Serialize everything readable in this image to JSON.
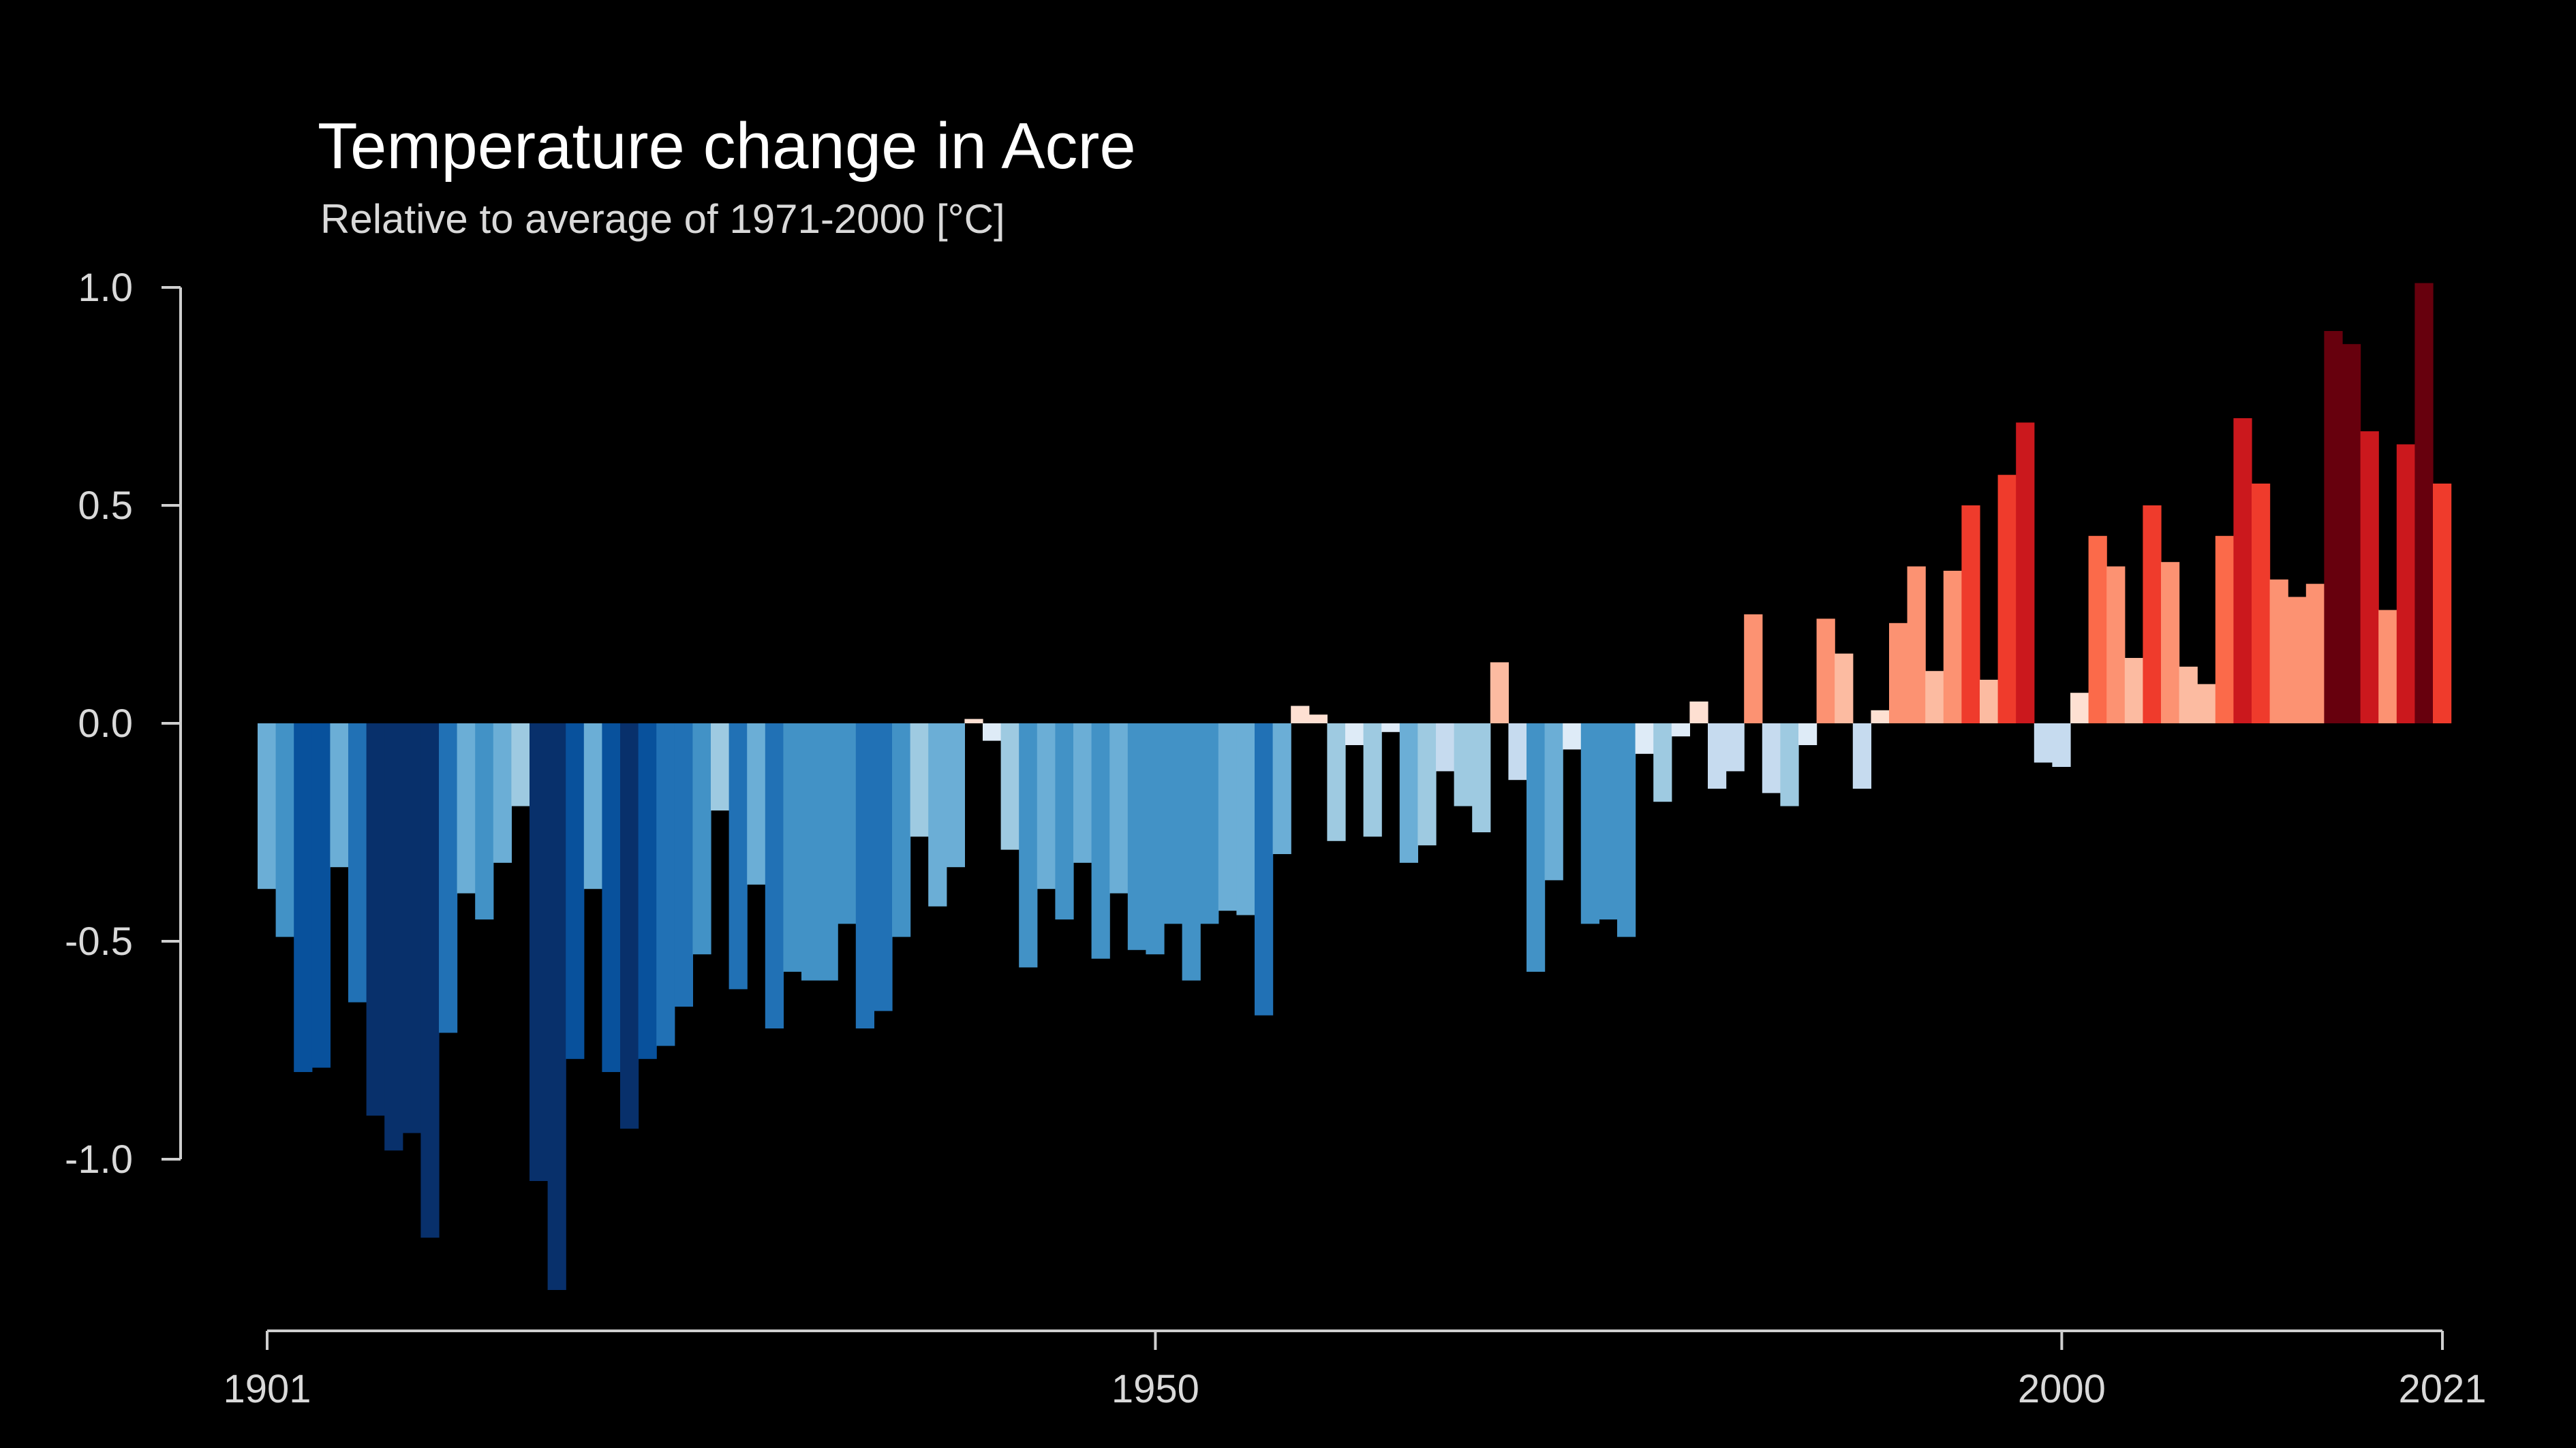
{
  "chart_data": {
    "type": "bar",
    "title": "Temperature change in Acre",
    "subtitle": "Relative to average of 1971-2000  [°C]",
    "xlabel": "",
    "ylabel": "",
    "x_start": 1901,
    "x_end": 2021,
    "ylim": [
      -1.3,
      1.0
    ],
    "y_ticks": [
      1.0,
      0.5,
      0.0,
      -0.5,
      -1.0
    ],
    "y_tick_labels": [
      "1.0",
      "0.5",
      "0.0",
      "-0.5",
      "-1.0"
    ],
    "x_ticks": [
      1901,
      1950,
      2000,
      2021
    ],
    "x_tick_labels": [
      "1901",
      "1950",
      "2000",
      "2021"
    ],
    "grid": false,
    "legend": "none",
    "background": "#000000",
    "palette": [
      "#08306b",
      "#08519c",
      "#2171b5",
      "#4292c6",
      "#6baed6",
      "#9ecae1",
      "#c6dbef",
      "#deebf7",
      "#fee0d2",
      "#fcbba1",
      "#fc9272",
      "#fb6a4a",
      "#ef3b2c",
      "#cb181d",
      "#a50f15",
      "#67000d"
    ],
    "years": [
      1901,
      1902,
      1903,
      1904,
      1905,
      1906,
      1907,
      1908,
      1909,
      1910,
      1911,
      1912,
      1913,
      1914,
      1915,
      1916,
      1917,
      1918,
      1919,
      1920,
      1921,
      1922,
      1923,
      1924,
      1925,
      1926,
      1927,
      1928,
      1929,
      1930,
      1931,
      1932,
      1933,
      1934,
      1935,
      1936,
      1937,
      1938,
      1939,
      1940,
      1941,
      1942,
      1943,
      1944,
      1945,
      1946,
      1947,
      1948,
      1949,
      1950,
      1951,
      1952,
      1953,
      1954,
      1955,
      1956,
      1957,
      1958,
      1959,
      1960,
      1961,
      1962,
      1963,
      1964,
      1965,
      1966,
      1967,
      1968,
      1969,
      1970,
      1971,
      1972,
      1973,
      1974,
      1975,
      1976,
      1977,
      1978,
      1979,
      1980,
      1981,
      1982,
      1983,
      1984,
      1985,
      1986,
      1987,
      1988,
      1989,
      1990,
      1991,
      1992,
      1993,
      1994,
      1995,
      1996,
      1997,
      1998,
      1999,
      2000,
      2001,
      2002,
      2003,
      2004,
      2005,
      2006,
      2007,
      2008,
      2009,
      2010,
      2011,
      2012,
      2013,
      2014,
      2015,
      2016,
      2017,
      2018,
      2019,
      2020,
      2021
    ],
    "values": [
      -0.38,
      -0.49,
      -0.8,
      -0.79,
      -0.33,
      -0.64,
      -0.9,
      -0.98,
      -0.94,
      -1.18,
      -0.71,
      -0.39,
      -0.45,
      -0.32,
      -0.19,
      -1.05,
      -1.3,
      -0.77,
      -0.38,
      -0.8,
      -0.93,
      -0.77,
      -0.74,
      -0.65,
      -0.53,
      -0.2,
      -0.61,
      -0.37,
      -0.7,
      -0.57,
      -0.59,
      -0.59,
      -0.46,
      -0.7,
      -0.66,
      -0.49,
      -0.26,
      -0.42,
      -0.33,
      0.01,
      -0.04,
      -0.29,
      -0.56,
      -0.38,
      -0.45,
      -0.32,
      -0.54,
      -0.39,
      -0.52,
      -0.53,
      -0.46,
      -0.59,
      -0.46,
      -0.43,
      -0.44,
      -0.67,
      -0.3,
      0.04,
      0.02,
      -0.27,
      -0.05,
      -0.26,
      -0.02,
      -0.32,
      -0.28,
      -0.11,
      -0.19,
      -0.25,
      0.14,
      -0.13,
      -0.57,
      -0.36,
      -0.06,
      -0.46,
      -0.45,
      -0.49,
      -0.07,
      -0.18,
      -0.03,
      0.05,
      -0.15,
      -0.11,
      0.25,
      -0.16,
      -0.19,
      -0.05,
      0.24,
      0.16,
      -0.15,
      0.03,
      0.23,
      0.36,
      0.12,
      0.35,
      0.5,
      0.1,
      0.57,
      0.69,
      -0.09,
      -0.1,
      0.07,
      0.43,
      0.36,
      0.15,
      0.5,
      0.37,
      0.13,
      0.09,
      0.43,
      0.7,
      0.55,
      0.33,
      0.29,
      0.32,
      0.9,
      0.87,
      0.67,
      0.26,
      0.64,
      1.01,
      0.55
    ]
  }
}
